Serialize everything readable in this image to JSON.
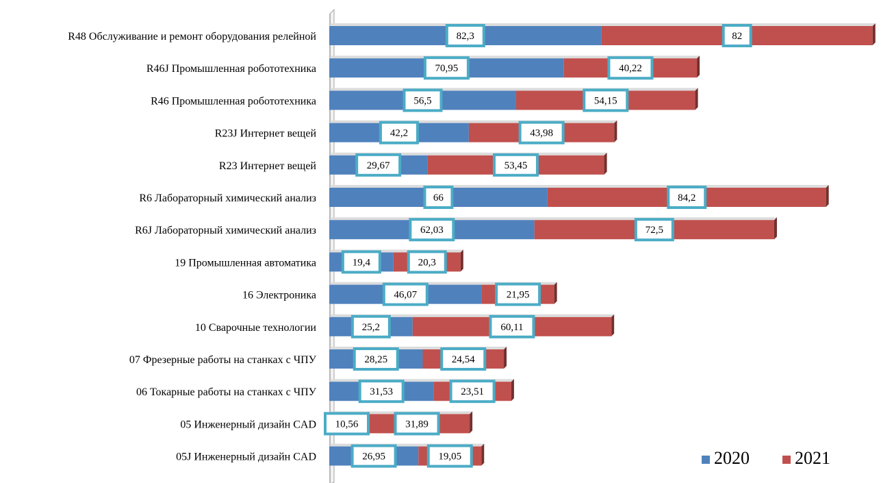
{
  "chart_data": {
    "type": "bar",
    "orientation": "horizontal",
    "stacked": true,
    "categories": [
      "R48  Обслуживание и ремонт оборудования релейной",
      "R46J Промышленная робототехника",
      "R46 Промышленная робототехника",
      "R23J Интернет вещей",
      "R23 Интернет вещей",
      "R6 Лабораторный химический анализ",
      "R6J Лабораторный химический анализ",
      "19 Промышленная автоматика",
      "16 Электроника",
      "10 Сварочные технологии",
      "07 Фрезерные работы на станках с ЧПУ",
      "06 Токарные работы на станках с ЧПУ",
      "05 Инженерный дизайн CAD",
      "05J Инженерный дизайн CAD"
    ],
    "series": [
      {
        "name": "2020",
        "color": "#4F81BD",
        "values": [
          82.3,
          70.95,
          56.5,
          42.2,
          29.67,
          66,
          62.03,
          19.4,
          46.07,
          25.2,
          28.25,
          31.53,
          10.56,
          26.95
        ],
        "labels": [
          "82,3",
          "70,95",
          "56,5",
          "42,2",
          "29,67",
          "66",
          "62,03",
          "19,4",
          "46,07",
          "25,2",
          "28,25",
          "31,53",
          "10,56",
          "26,95"
        ]
      },
      {
        "name": "2021",
        "color": "#C0504D",
        "values": [
          82,
          40.22,
          54.15,
          43.98,
          53.45,
          84.2,
          72.5,
          20.3,
          21.95,
          60.11,
          24.54,
          23.51,
          31.89,
          19.05
        ],
        "labels": [
          "82",
          "40,22",
          "54,15",
          "43,98",
          "53,45",
          "84,2",
          "72,5",
          "20,3",
          "21,95",
          "60,11",
          "24,54",
          "23,51",
          "31,89",
          "19,05"
        ]
      }
    ],
    "xlim": [
      0,
      166
    ],
    "grid": false,
    "legend": "bottom-right",
    "label_box_color": "#4BACC6"
  }
}
